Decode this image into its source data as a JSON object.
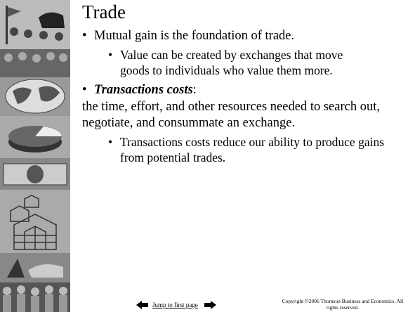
{
  "slide": {
    "title": "Trade",
    "bullets": [
      {
        "text": "Mutual gain is the foundation of trade.",
        "sub": [
          "Value can be created by exchanges that move goods to individuals who value them more."
        ]
      },
      {
        "term": "Transactions costs",
        "suffix": ":",
        "definition": "the time, effort, and other resources needed to search out, negotiate, and consummate an exchange.",
        "sub": [
          "Transactions costs reduce our ability to produce gains from potential trades."
        ]
      }
    ],
    "footer": {
      "link": "Jump to first page",
      "copyright": "Copyright ©2006  Thomson Business and Economics. All rights reserved."
    }
  }
}
